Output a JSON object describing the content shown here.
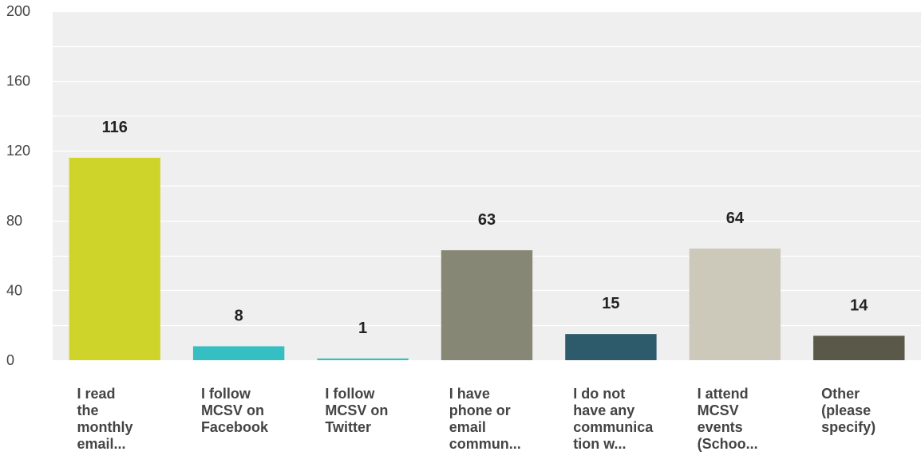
{
  "chart_data": {
    "type": "bar",
    "title": "",
    "xlabel": "",
    "ylabel": "",
    "ylim": [
      0,
      200
    ],
    "yticks": [
      0,
      40,
      80,
      120,
      160,
      200
    ],
    "grid": true,
    "categories": [
      [
        "I read",
        "the",
        "monthly",
        "email..."
      ],
      [
        "I follow",
        "MCSV on",
        "Facebook"
      ],
      [
        "I follow",
        "MCSV on",
        "Twitter"
      ],
      [
        "I have",
        "phone or",
        "email",
        "commun..."
      ],
      [
        "I do not",
        "have any",
        "communica",
        "tion w..."
      ],
      [
        "I attend",
        "MCSV",
        "events",
        "(Schoo..."
      ],
      [
        "Other",
        "(please",
        "specify)"
      ]
    ],
    "values": [
      116,
      8,
      1,
      63,
      15,
      64,
      14
    ],
    "colors": [
      "#cfd42a",
      "#35bfc3",
      "#35bfc3",
      "#878775",
      "#2e5b6b",
      "#ccc9bb",
      "#5a5848"
    ]
  }
}
